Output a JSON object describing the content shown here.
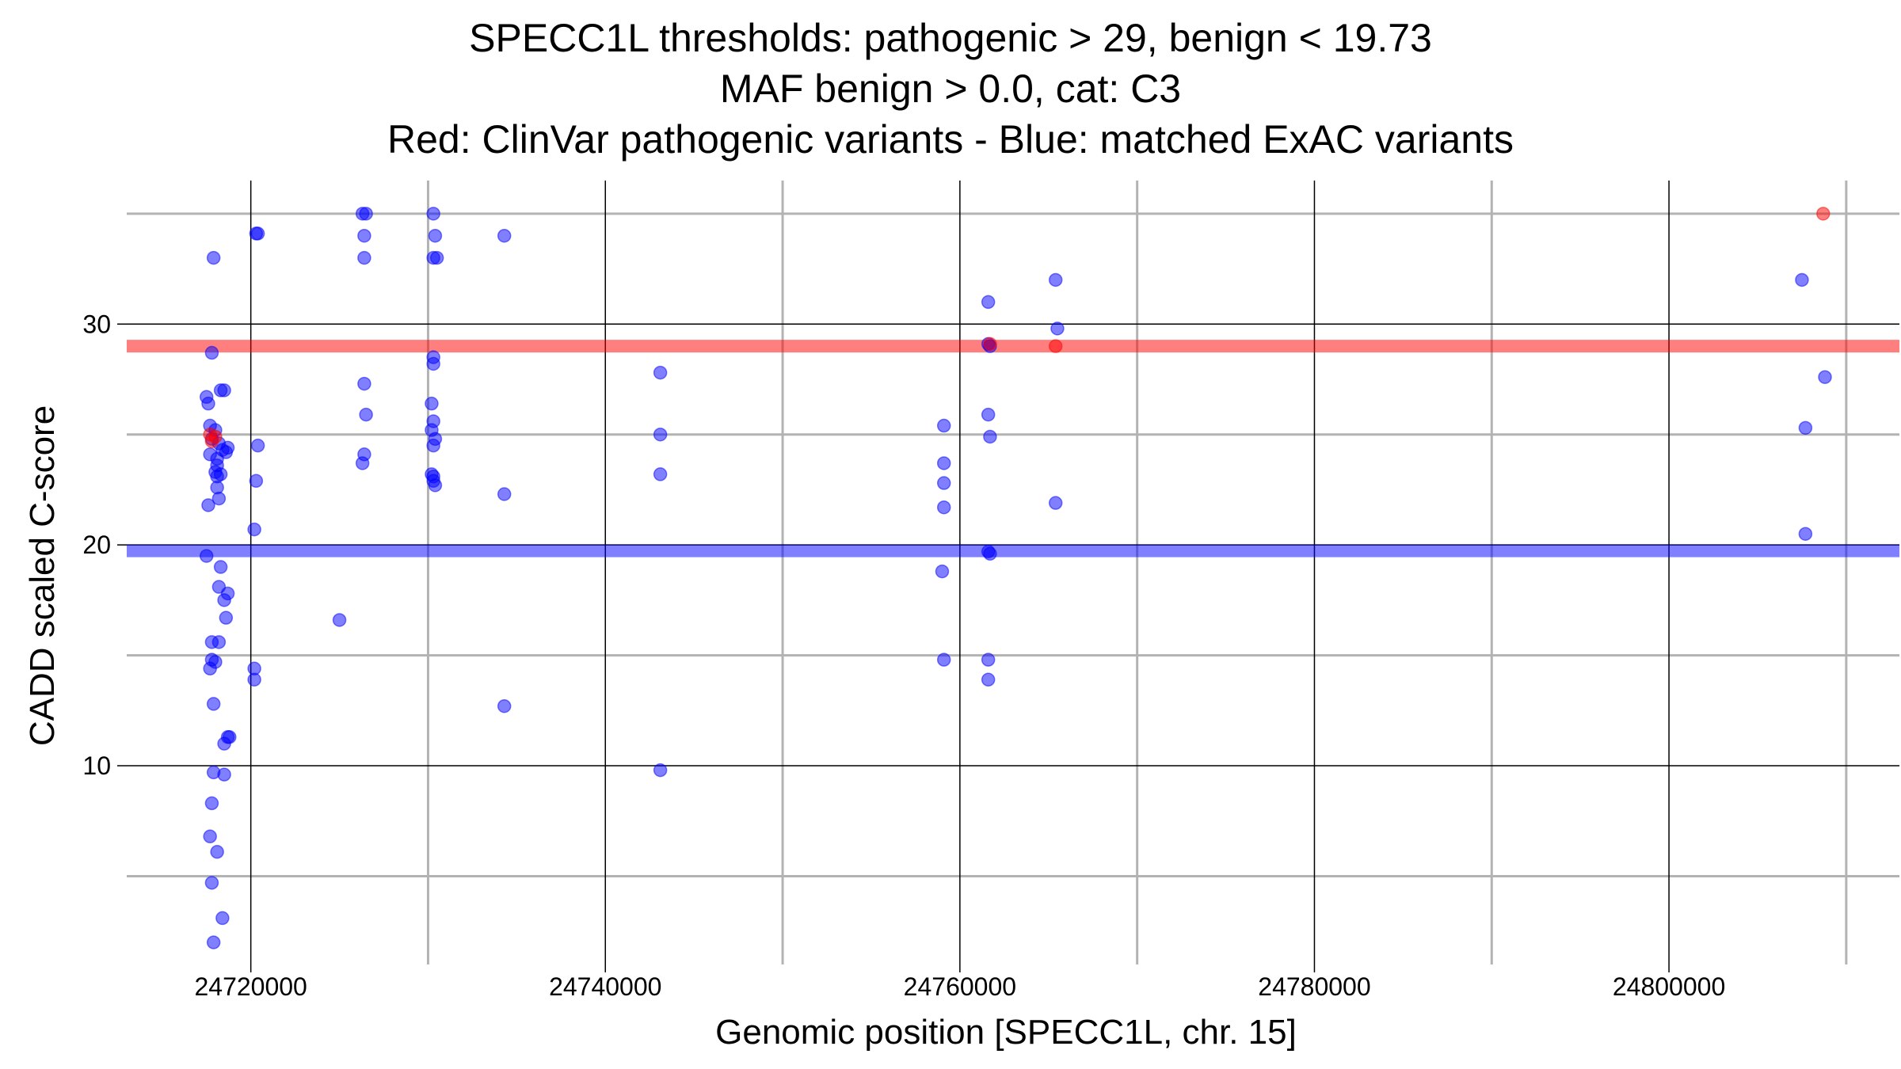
{
  "chart_data": {
    "type": "scatter",
    "title_lines": [
      "SPECC1L thresholds: pathogenic > 29, benign < 19.73",
      "MAF benign > 0.0, cat: C3",
      "Red: ClinVar pathogenic variants - Blue: matched ExAC variants"
    ],
    "xlabel": "Genomic position [SPECC1L, chr. 15]",
    "ylabel": "CADD scaled C-score",
    "xlim": [
      24713000,
      24813000
    ],
    "ylim": [
      1,
      36.5
    ],
    "x_ticks": [
      24720000,
      24740000,
      24760000,
      24780000,
      24800000
    ],
    "x_tick_labels": [
      "24720000",
      "24740000",
      "24760000",
      "24780000",
      "24800000"
    ],
    "x_minor_gridlines": [
      24730000,
      24750000,
      24770000,
      24790000,
      24810000
    ],
    "y_ticks": [
      10,
      20,
      30
    ],
    "y_tick_labels": [
      "10",
      "20",
      "30"
    ],
    "y_minor_gridlines": [
      5,
      15,
      25,
      35
    ],
    "grid": true,
    "thresholds": [
      {
        "kind": "pathogenic",
        "y": 29,
        "color": "#ff0000"
      },
      {
        "kind": "benign",
        "y": 19.73,
        "color": "#0000ff"
      }
    ],
    "series": [
      {
        "color": "#0000ff",
        "points": [
          [
            24717900,
            33
          ],
          [
            24717800,
            28.7
          ],
          [
            24717500,
            26.7
          ],
          [
            24717600,
            26.4
          ],
          [
            24718300,
            27
          ],
          [
            24718500,
            27
          ],
          [
            24717700,
            25.4
          ],
          [
            24718000,
            25.2
          ],
          [
            24717800,
            24.8
          ],
          [
            24718200,
            24.6
          ],
          [
            24718700,
            24.4
          ],
          [
            24718400,
            24.3
          ],
          [
            24717700,
            24.1
          ],
          [
            24718600,
            24.2
          ],
          [
            24718100,
            23.9
          ],
          [
            24718100,
            23.6
          ],
          [
            24718000,
            23.3
          ],
          [
            24718300,
            23.2
          ],
          [
            24718100,
            23.1
          ],
          [
            24718100,
            22.6
          ],
          [
            24718200,
            22.1
          ],
          [
            24717600,
            21.8
          ],
          [
            24717500,
            19.5
          ],
          [
            24718300,
            19.0
          ],
          [
            24718200,
            18.1
          ],
          [
            24718700,
            17.8
          ],
          [
            24718500,
            17.5
          ],
          [
            24718600,
            16.7
          ],
          [
            24717800,
            15.6
          ],
          [
            24718200,
            15.6
          ],
          [
            24717800,
            14.8
          ],
          [
            24718000,
            14.7
          ],
          [
            24717700,
            14.4
          ],
          [
            24717900,
            12.8
          ],
          [
            24718700,
            11.3
          ],
          [
            24718800,
            11.3
          ],
          [
            24718500,
            11.0
          ],
          [
            24717900,
            9.7
          ],
          [
            24718500,
            9.6
          ],
          [
            24717800,
            8.3
          ],
          [
            24717700,
            6.8
          ],
          [
            24718100,
            6.1
          ],
          [
            24717800,
            4.7
          ],
          [
            24718400,
            3.1
          ],
          [
            24717900,
            2.0
          ],
          [
            24720300,
            34.1
          ],
          [
            24720400,
            34.1
          ],
          [
            24720400,
            24.5
          ],
          [
            24720300,
            22.9
          ],
          [
            24720200,
            20.7
          ],
          [
            24720200,
            14.4
          ],
          [
            24720200,
            13.9
          ],
          [
            24725000,
            16.6
          ],
          [
            24726300,
            35
          ],
          [
            24726500,
            35
          ],
          [
            24726400,
            34
          ],
          [
            24726400,
            33
          ],
          [
            24726400,
            27.3
          ],
          [
            24726500,
            25.9
          ],
          [
            24726400,
            24.1
          ],
          [
            24726300,
            23.7
          ],
          [
            24730300,
            35
          ],
          [
            24730400,
            34
          ],
          [
            24730300,
            33
          ],
          [
            24730500,
            33
          ],
          [
            24730300,
            28.5
          ],
          [
            24730300,
            28.2
          ],
          [
            24730200,
            26.4
          ],
          [
            24730300,
            25.6
          ],
          [
            24730200,
            25.2
          ],
          [
            24730400,
            24.8
          ],
          [
            24730300,
            24.5
          ],
          [
            24730200,
            23.2
          ],
          [
            24730300,
            23.1
          ],
          [
            24730300,
            22.9
          ],
          [
            24730400,
            22.7
          ],
          [
            24734300,
            34
          ],
          [
            24734300,
            22.3
          ],
          [
            24734300,
            12.7
          ],
          [
            24743100,
            27.8
          ],
          [
            24743100,
            25.0
          ],
          [
            24743100,
            23.2
          ],
          [
            24743100,
            9.8
          ],
          [
            24759100,
            25.4
          ],
          [
            24759100,
            23.7
          ],
          [
            24759100,
            22.8
          ],
          [
            24759100,
            21.7
          ],
          [
            24759000,
            18.8
          ],
          [
            24759100,
            14.8
          ],
          [
            24761600,
            31
          ],
          [
            24761600,
            29.1
          ],
          [
            24761700,
            29
          ],
          [
            24761600,
            25.9
          ],
          [
            24761700,
            24.9
          ],
          [
            24761600,
            19.7
          ],
          [
            24761700,
            19.6
          ],
          [
            24761600,
            14.8
          ],
          [
            24761600,
            13.9
          ],
          [
            24765400,
            32
          ],
          [
            24765500,
            29.8
          ],
          [
            24765400,
            21.9
          ],
          [
            24807500,
            32
          ],
          [
            24807700,
            25.3
          ],
          [
            24807700,
            20.5
          ],
          [
            24808800,
            27.6
          ]
        ]
      },
      {
        "color": "#ff0000",
        "points": [
          [
            24717700,
            25.0
          ],
          [
            24717800,
            24.7
          ],
          [
            24718000,
            24.9
          ],
          [
            24761700,
            29.1
          ],
          [
            24765400,
            29.0
          ],
          [
            24808700,
            35
          ]
        ]
      }
    ]
  }
}
